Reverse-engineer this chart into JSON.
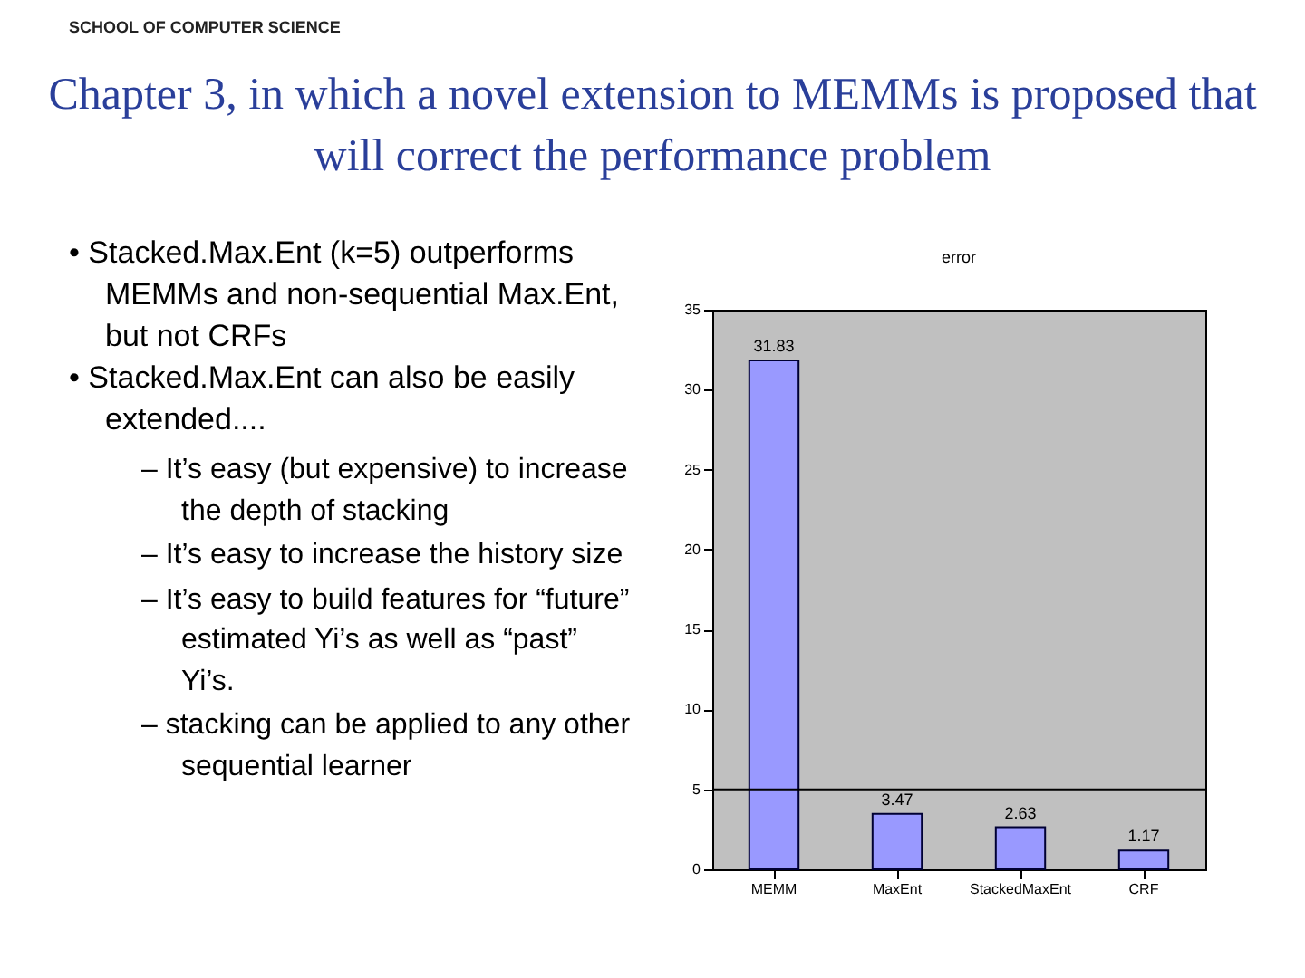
{
  "chart_data": {
    "type": "bar",
    "title": "Chapter 3, in which a novel extension to MEMMs is proposed that will correct the performance problem",
    "subtitle": "error",
    "annotations": [
      "SCHOOL OF COMPUTER SCIENCE",
      "• Stacked.Max.Ent (k=5) outperforms MEMMs and non-sequential Max.Ent, but not CRFs",
      "• Stacked.Max.Ent can also be easily extended....",
      "– It’s easy (but expensive) to increase the depth of stacking",
      "– It’s easy to increase the history size",
      "– It’s easy to build features for “future” estimated Yi’s as well as “past” Yi’s.",
      "– stacking can be applied to any other sequential learner"
    ],
    "categories": [
      "MEMM",
      "MaxEnt",
      "StackedMaxEnt",
      "CRF"
    ],
    "series": [
      {
        "color": "#9999ff",
        "values": [
          31.83,
          3.47,
          2.63,
          1.17
        ]
      }
    ],
    "data_labels": true,
    "ylim": [
      0,
      35
    ],
    "yticks": [
      0,
      5,
      10,
      15,
      20,
      25,
      30,
      35
    ],
    "ref_lines": [
      {
        "axis": "y",
        "value": 5,
        "color": "#000000"
      }
    ],
    "grid": false
  }
}
